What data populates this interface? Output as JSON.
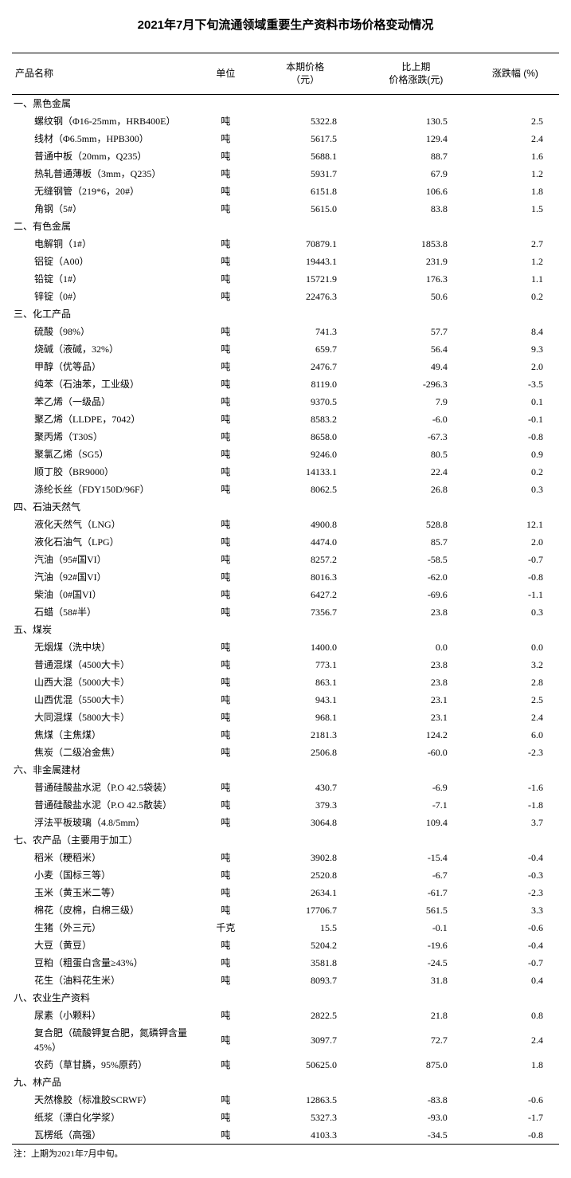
{
  "title": "2021年7月下旬流通领域重要生产资料市场价格变动情况",
  "columns": {
    "name": "产品名称",
    "unit": "单位",
    "price": "本期价格\n（元）",
    "change": "比上期\n价格涨跌(元)",
    "pct": "涨跌幅 (%)"
  },
  "sections": [
    {
      "header": "一、黑色金属",
      "rows": [
        {
          "name": "螺纹钢（Φ16-25mm，HRB400E）",
          "unit": "吨",
          "price": "5322.8",
          "change": "130.5",
          "pct": "2.5"
        },
        {
          "name": "线材（Φ6.5mm，HPB300）",
          "unit": "吨",
          "price": "5617.5",
          "change": "129.4",
          "pct": "2.4"
        },
        {
          "name": "普通中板（20mm，Q235）",
          "unit": "吨",
          "price": "5688.1",
          "change": "88.7",
          "pct": "1.6"
        },
        {
          "name": "热轧普通薄板（3mm，Q235）",
          "unit": "吨",
          "price": "5931.7",
          "change": "67.9",
          "pct": "1.2"
        },
        {
          "name": "无缝钢管（219*6，20#）",
          "unit": "吨",
          "price": "6151.8",
          "change": "106.6",
          "pct": "1.8"
        },
        {
          "name": "角钢（5#）",
          "unit": "吨",
          "price": "5615.0",
          "change": "83.8",
          "pct": "1.5"
        }
      ]
    },
    {
      "header": "二、有色金属",
      "rows": [
        {
          "name": "电解铜（1#）",
          "unit": "吨",
          "price": "70879.1",
          "change": "1853.8",
          "pct": "2.7"
        },
        {
          "name": "铝锭（A00）",
          "unit": "吨",
          "price": "19443.1",
          "change": "231.9",
          "pct": "1.2"
        },
        {
          "name": "铅锭（1#）",
          "unit": "吨",
          "price": "15721.9",
          "change": "176.3",
          "pct": "1.1"
        },
        {
          "name": "锌锭（0#）",
          "unit": "吨",
          "price": "22476.3",
          "change": "50.6",
          "pct": "0.2"
        }
      ]
    },
    {
      "header": "三、化工产品",
      "rows": [
        {
          "name": "硫酸（98%）",
          "unit": "吨",
          "price": "741.3",
          "change": "57.7",
          "pct": "8.4"
        },
        {
          "name": "烧碱（液碱，32%）",
          "unit": "吨",
          "price": "659.7",
          "change": "56.4",
          "pct": "9.3"
        },
        {
          "name": "甲醇（优等品）",
          "unit": "吨",
          "price": "2476.7",
          "change": "49.4",
          "pct": "2.0"
        },
        {
          "name": "纯苯（石油苯，工业级）",
          "unit": "吨",
          "price": "8119.0",
          "change": "-296.3",
          "pct": "-3.5"
        },
        {
          "name": "苯乙烯（一级品）",
          "unit": "吨",
          "price": "9370.5",
          "change": "7.9",
          "pct": "0.1"
        },
        {
          "name": "聚乙烯（LLDPE，7042）",
          "unit": "吨",
          "price": "8583.2",
          "change": "-6.0",
          "pct": "-0.1"
        },
        {
          "name": "聚丙烯（T30S）",
          "unit": "吨",
          "price": "8658.0",
          "change": "-67.3",
          "pct": "-0.8"
        },
        {
          "name": "聚氯乙烯（SG5）",
          "unit": "吨",
          "price": "9246.0",
          "change": "80.5",
          "pct": "0.9"
        },
        {
          "name": "顺丁胶（BR9000）",
          "unit": "吨",
          "price": "14133.1",
          "change": "22.4",
          "pct": "0.2"
        },
        {
          "name": "涤纶长丝（FDY150D/96F）",
          "unit": "吨",
          "price": "8062.5",
          "change": "26.8",
          "pct": "0.3"
        }
      ]
    },
    {
      "header": "四、石油天然气",
      "rows": [
        {
          "name": "液化天然气（LNG）",
          "unit": "吨",
          "price": "4900.8",
          "change": "528.8",
          "pct": "12.1"
        },
        {
          "name": "液化石油气（LPG）",
          "unit": "吨",
          "price": "4474.0",
          "change": "85.7",
          "pct": "2.0"
        },
        {
          "name": "汽油（95#国VI）",
          "unit": "吨",
          "price": "8257.2",
          "change": "-58.5",
          "pct": "-0.7"
        },
        {
          "name": "汽油（92#国VI）",
          "unit": "吨",
          "price": "8016.3",
          "change": "-62.0",
          "pct": "-0.8"
        },
        {
          "name": "柴油（0#国VI）",
          "unit": "吨",
          "price": "6427.2",
          "change": "-69.6",
          "pct": "-1.1"
        },
        {
          "name": "石蜡（58#半）",
          "unit": "吨",
          "price": "7356.7",
          "change": "23.8",
          "pct": "0.3"
        }
      ]
    },
    {
      "header": "五、煤炭",
      "rows": [
        {
          "name": "无烟煤（洗中块）",
          "unit": "吨",
          "price": "1400.0",
          "change": "0.0",
          "pct": "0.0"
        },
        {
          "name": "普通混煤（4500大卡）",
          "unit": "吨",
          "price": "773.1",
          "change": "23.8",
          "pct": "3.2"
        },
        {
          "name": "山西大混（5000大卡）",
          "unit": "吨",
          "price": "863.1",
          "change": "23.8",
          "pct": "2.8"
        },
        {
          "name": "山西优混（5500大卡）",
          "unit": "吨",
          "price": "943.1",
          "change": "23.1",
          "pct": "2.5"
        },
        {
          "name": "大同混煤（5800大卡）",
          "unit": "吨",
          "price": "968.1",
          "change": "23.1",
          "pct": "2.4"
        },
        {
          "name": "焦煤（主焦煤）",
          "unit": "吨",
          "price": "2181.3",
          "change": "124.2",
          "pct": "6.0"
        },
        {
          "name": "焦炭（二级冶金焦）",
          "unit": "吨",
          "price": "2506.8",
          "change": "-60.0",
          "pct": "-2.3"
        }
      ]
    },
    {
      "header": "六、非金属建材",
      "rows": [
        {
          "name": "普通硅酸盐水泥（P.O 42.5袋装）",
          "unit": "吨",
          "price": "430.7",
          "change": "-6.9",
          "pct": "-1.6"
        },
        {
          "name": "普通硅酸盐水泥（P.O 42.5散装）",
          "unit": "吨",
          "price": "379.3",
          "change": "-7.1",
          "pct": "-1.8"
        },
        {
          "name": "浮法平板玻璃（4.8/5mm）",
          "unit": "吨",
          "price": "3064.8",
          "change": "109.4",
          "pct": "3.7"
        }
      ]
    },
    {
      "header": "七、农产品（主要用于加工）",
      "rows": [
        {
          "name": "稻米（粳稻米）",
          "unit": "吨",
          "price": "3902.8",
          "change": "-15.4",
          "pct": "-0.4"
        },
        {
          "name": "小麦（国标三等）",
          "unit": "吨",
          "price": "2520.8",
          "change": "-6.7",
          "pct": "-0.3"
        },
        {
          "name": "玉米（黄玉米二等）",
          "unit": "吨",
          "price": "2634.1",
          "change": "-61.7",
          "pct": "-2.3"
        },
        {
          "name": "棉花（皮棉，白棉三级）",
          "unit": "吨",
          "price": "17706.7",
          "change": "561.5",
          "pct": "3.3"
        },
        {
          "name": "生猪（外三元）",
          "unit": "千克",
          "price": "15.5",
          "change": "-0.1",
          "pct": "-0.6"
        },
        {
          "name": "大豆（黄豆）",
          "unit": "吨",
          "price": "5204.2",
          "change": "-19.6",
          "pct": "-0.4"
        },
        {
          "name": "豆粕（粗蛋白含量≥43%）",
          "unit": "吨",
          "price": "3581.8",
          "change": "-24.5",
          "pct": "-0.7"
        },
        {
          "name": "花生（油料花生米）",
          "unit": "吨",
          "price": "8093.7",
          "change": "31.8",
          "pct": "0.4"
        }
      ]
    },
    {
      "header": "八、农业生产资料",
      "rows": [
        {
          "name": "尿素（小颗料）",
          "unit": "吨",
          "price": "2822.5",
          "change": "21.8",
          "pct": "0.8"
        },
        {
          "name": "复合肥（硫酸钾复合肥，氮磷钾含量45%）",
          "unit": "吨",
          "price": "3097.7",
          "change": "72.7",
          "pct": "2.4"
        },
        {
          "name": "农药（草甘膦，95%原药）",
          "unit": "吨",
          "price": "50625.0",
          "change": "875.0",
          "pct": "1.8"
        }
      ]
    },
    {
      "header": "九、林产品",
      "rows": [
        {
          "name": "天然橡胶（标准胶SCRWF）",
          "unit": "吨",
          "price": "12863.5",
          "change": "-83.8",
          "pct": "-0.6"
        },
        {
          "name": "纸浆（漂白化学浆）",
          "unit": "吨",
          "price": "5327.3",
          "change": "-93.0",
          "pct": "-1.7"
        },
        {
          "name": "瓦楞纸（高强）",
          "unit": "吨",
          "price": "4103.3",
          "change": "-34.5",
          "pct": "-0.8"
        }
      ]
    }
  ],
  "footnote": "注：上期为2021年7月中旬。"
}
